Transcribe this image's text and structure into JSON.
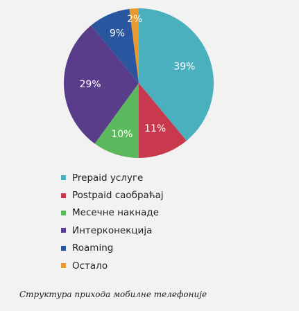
{
  "chart_data": {
    "type": "pie",
    "categories": [
      "Prepaid услуге",
      "Postpaid саобраћај",
      "Месечне накнаде",
      "Интерконекција",
      "Roaming",
      "Остало"
    ],
    "values": [
      39,
      11,
      10,
      29,
      9,
      2
    ],
    "value_labels": [
      "39%",
      "11%",
      "10%",
      "29%",
      "9%",
      "2%"
    ],
    "colors": [
      "#4ab0bd",
      "#c8394e",
      "#5cb85c",
      "#5a3d8a",
      "#2a56a0",
      "#e89a2c"
    ],
    "legend_position": "bottom",
    "grid": false
  },
  "caption": "Структура прихода мобилне телефоније"
}
